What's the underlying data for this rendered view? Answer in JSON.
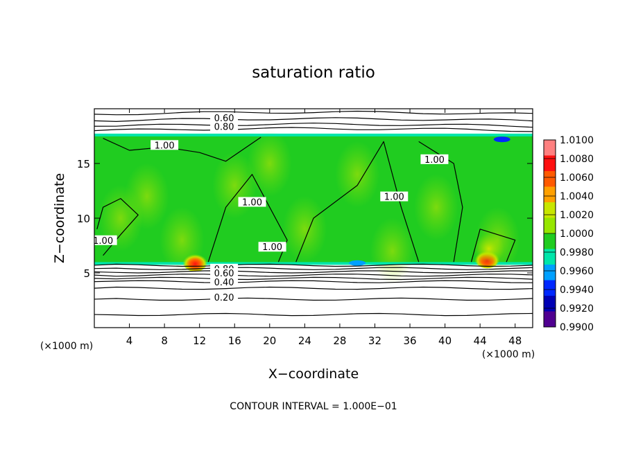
{
  "chart_data": {
    "type": "heatmap",
    "title": "saturation ratio",
    "xlabel": "X−coordinate",
    "ylabel": "Z−coordinate",
    "x_unit_left": "(×1000 m)",
    "x_unit_right": "(×1000 m)",
    "footer": "CONTOUR INTERVAL = 1.000E−01",
    "xlim": [
      0,
      50
    ],
    "ylim": [
      0,
      20
    ],
    "x_ticks": [
      4,
      8,
      12,
      16,
      20,
      24,
      28,
      32,
      36,
      40,
      44,
      48
    ],
    "x_tick_labels": [
      "4",
      "8",
      "12",
      "16",
      "20",
      "24",
      "28",
      "32",
      "36",
      "40",
      "44",
      "48"
    ],
    "y_ticks": [
      5,
      10,
      15
    ],
    "y_tick_labels": [
      "5",
      "10",
      "15"
    ],
    "colorbar": {
      "levels": [
        "1.0100",
        "1.0080",
        "1.0060",
        "1.0040",
        "1.0020",
        "1.0000",
        "0.9980",
        "0.9960",
        "0.9940",
        "0.9920",
        "0.9900"
      ],
      "colors": [
        "#ff8080",
        "#ff1010",
        "#ff5a00",
        "#ffa000",
        "#c8e600",
        "#96e600",
        "#20cc20",
        "#00e6aa",
        "#00a0ff",
        "#0028ff",
        "#0000b4",
        "#500090"
      ]
    },
    "contour_labels": [
      {
        "text": "0.60",
        "x": 14.8,
        "y": 19.0
      },
      {
        "text": "0.80",
        "x": 14.8,
        "y": 18.2
      },
      {
        "text": "1.00",
        "x": 8.0,
        "y": 16.5
      },
      {
        "text": "1.00",
        "x": 18.0,
        "y": 11.3
      },
      {
        "text": "1.00",
        "x": 38.8,
        "y": 15.2
      },
      {
        "text": "1.00",
        "x": 34.2,
        "y": 11.8
      },
      {
        "text": "1.00",
        "x": 1.0,
        "y": 7.8
      },
      {
        "text": "1.00",
        "x": 20.3,
        "y": 7.2
      },
      {
        "text": "0.80",
        "x": 14.8,
        "y": 5.2
      },
      {
        "text": "0.60",
        "x": 14.8,
        "y": 4.8
      },
      {
        "text": "0.40",
        "x": 14.8,
        "y": 4.0
      },
      {
        "text": "0.20",
        "x": 14.8,
        "y": 2.6
      }
    ],
    "contour_levels_y": [
      19.5,
      18.9,
      18.4,
      18.0,
      5.7,
      5.4,
      5.1,
      4.8,
      4.5,
      4.2,
      3.6,
      2.6,
      1.2
    ],
    "field": {
      "background": "1.0000",
      "moist_region_z": [
        5.8,
        17.6
      ],
      "features": [
        {
          "value": "1.0060",
          "x": 44.8,
          "z": 6.3
        },
        {
          "value": "1.0060",
          "x": 11.5,
          "z": 6.0
        },
        {
          "value": "1.0020",
          "x": 45.0,
          "z": 7.2
        },
        {
          "value": "0.9940",
          "x": 46.5,
          "z": 17.2
        },
        {
          "value": "0.9960",
          "x": 30.0,
          "z": 5.9
        }
      ]
    }
  }
}
